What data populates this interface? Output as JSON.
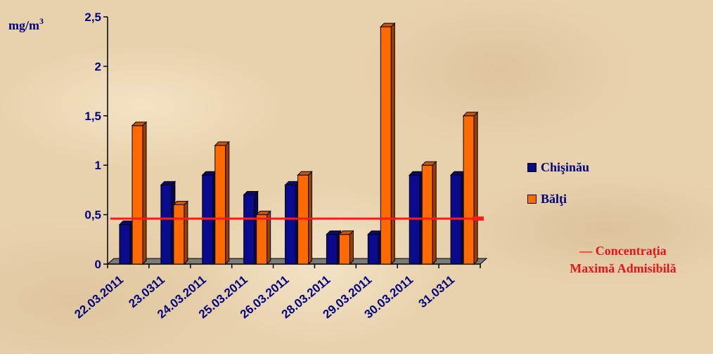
{
  "chart_data": {
    "type": "bar",
    "ylabel": "mg/m",
    "ylabel_sup": "3",
    "ylim": [
      0,
      2.5
    ],
    "yticks": [
      "0",
      "0,5",
      "1",
      "1,5",
      "2",
      "2,5"
    ],
    "categories": [
      "22.03.2011",
      "23.0311",
      "24.03.2011",
      "25.03.2011",
      "26.03.2011",
      "28.03.2011",
      "29.03.2011",
      "30.03.2011",
      "31.0311"
    ],
    "series": [
      {
        "name": "Chişinău",
        "color": "#0a0a8c",
        "values": [
          0.4,
          0.8,
          0.9,
          0.7,
          0.8,
          0.3,
          0.3,
          0.9,
          0.9
        ]
      },
      {
        "name": "Bălţi",
        "color": "#ff6a00",
        "values": [
          1.4,
          0.6,
          1.2,
          0.5,
          0.9,
          0.3,
          2.4,
          1.0,
          1.5
        ]
      }
    ],
    "reference_line": {
      "value": 0.46,
      "color": "#ff1a1a",
      "label": "— Concentraţia Maximă Admisibilă"
    },
    "legend_placement": "right",
    "grid": false
  },
  "legend": {
    "items": [
      {
        "label": "Chişinău",
        "color": "#0a0a8c"
      },
      {
        "label": "Bălţi",
        "color": "#ff6a00"
      }
    ],
    "cma_line1": "— Concentraţia",
    "cma_line2": "Maximă Admisibilă"
  }
}
